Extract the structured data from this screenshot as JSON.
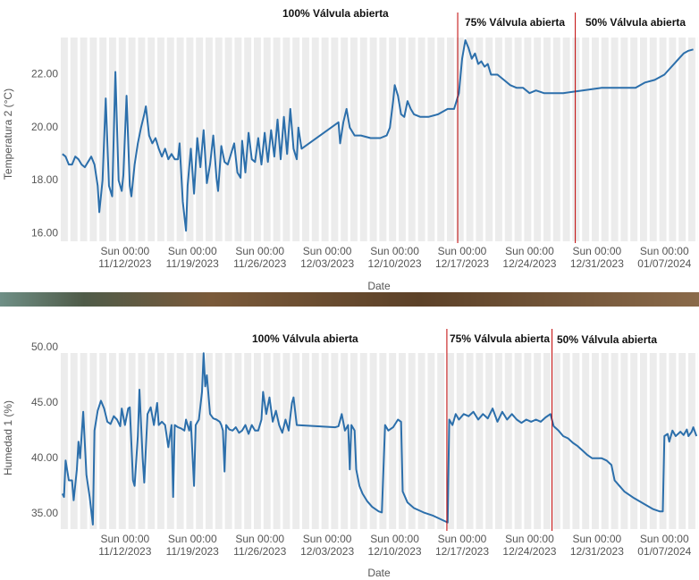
{
  "chart_data": [
    {
      "type": "line",
      "xlabel": "Date",
      "ylabel": "Temperatura 2 (°C)",
      "color": "#2c6fab",
      "xlim": [
        "2023-11-05 08:00",
        "2024-01-10 12:00"
      ],
      "ylim": [
        15.7,
        23.4
      ],
      "yticks": [
        {
          "value": 16,
          "label": "16.00"
        },
        {
          "value": 18,
          "label": "18.00"
        },
        {
          "value": 20,
          "label": "20.00"
        },
        {
          "value": 22,
          "label": "22.00"
        }
      ],
      "xticks": [
        {
          "value": "2023-11-12 00:00",
          "label": "Sun 00:00\n11/12/2023"
        },
        {
          "value": "2023-11-19 00:00",
          "label": "Sun 00:00\n11/19/2023"
        },
        {
          "value": "2023-11-26 00:00",
          "label": "Sun 00:00\n11/26/2023"
        },
        {
          "value": "2023-12-03 00:00",
          "label": "Sun 00:00\n12/03/2023"
        },
        {
          "value": "2023-12-10 00:00",
          "label": "Sun 00:00\n12/10/2023"
        },
        {
          "value": "2023-12-17 00:00",
          "label": "Sun 00:00\n12/17/2023"
        },
        {
          "value": "2023-12-24 00:00",
          "label": "Sun 00:00\n12/24/2023"
        },
        {
          "value": "2023-12-31 00:00",
          "label": "Sun 00:00\n12/31/2023"
        },
        {
          "value": "2024-01-07 00:00",
          "label": "Sun 00:00\n01/07/2024"
        }
      ],
      "annotations": [
        "100% Válvula abierta",
        "75% Válvula abierta",
        "50% Válvula abierta"
      ],
      "vlines": [
        {
          "x": "2023-12-16 13:00",
          "color": "#c00000"
        },
        {
          "x": "2023-12-28 18:00",
          "color": "#c00000"
        }
      ],
      "x": [
        "2023-11-05 12:00",
        "2023-11-05 20:00",
        "2023-11-06 04:00",
        "2023-11-06 12:00",
        "2023-11-06 20:00",
        "2023-11-07 04:00",
        "2023-11-07 12:00",
        "2023-11-07 20:00",
        "2023-11-08 04:00",
        "2023-11-08 12:00",
        "2023-11-08 20:00",
        "2023-11-09 04:00",
        "2023-11-09 08:00",
        "2023-11-09 16:00",
        "2023-11-10 00:00",
        "2023-11-10 08:00",
        "2023-11-10 16:00",
        "2023-11-11 00:00",
        "2023-11-11 08:00",
        "2023-11-11 16:00",
        "2023-11-11 20:00",
        "2023-11-12 04:00",
        "2023-11-12 12:00",
        "2023-11-12 16:00",
        "2023-11-13 00:00",
        "2023-11-13 08:00",
        "2023-11-13 16:00",
        "2023-11-14 00:00",
        "2023-11-14 04:00",
        "2023-11-14 12:00",
        "2023-11-14 20:00",
        "2023-11-15 04:00",
        "2023-11-15 12:00",
        "2023-11-15 20:00",
        "2023-11-16 04:00",
        "2023-11-16 12:00",
        "2023-11-16 20:00",
        "2023-11-17 04:00",
        "2023-11-17 12:00",
        "2023-11-17 16:00",
        "2023-11-18 00:00",
        "2023-11-18 08:00",
        "2023-11-18 12:00",
        "2023-11-18 20:00",
        "2023-11-19 04:00",
        "2023-11-19 12:00",
        "2023-11-19 20:00",
        "2023-11-20 04:00",
        "2023-11-20 12:00",
        "2023-11-20 20:00",
        "2023-11-21 04:00",
        "2023-11-21 12:00",
        "2023-11-21 16:00",
        "2023-11-22 00:00",
        "2023-11-22 08:00",
        "2023-11-22 16:00",
        "2023-11-23 00:00",
        "2023-11-23 08:00",
        "2023-11-23 16:00",
        "2023-11-24 00:00",
        "2023-11-24 04:00",
        "2023-11-24 12:00",
        "2023-11-24 20:00",
        "2023-11-25 04:00",
        "2023-11-25 12:00",
        "2023-11-25 20:00",
        "2023-11-26 04:00",
        "2023-11-26 12:00",
        "2023-11-26 20:00",
        "2023-11-27 04:00",
        "2023-11-27 12:00",
        "2023-11-27 20:00",
        "2023-11-28 04:00",
        "2023-11-28 12:00",
        "2023-11-28 20:00",
        "2023-11-29 04:00",
        "2023-11-29 12:00",
        "2023-11-29 20:00",
        "2023-11-30 00:00",
        "2023-11-30 08:00",
        "2023-12-04 04:00",
        "2023-12-04 08:00",
        "2023-12-04 16:00",
        "2023-12-05 00:00",
        "2023-12-05 08:00",
        "2023-12-05 20:00",
        "2023-12-06 12:00",
        "2023-12-07 12:00",
        "2023-12-08 12:00",
        "2023-12-09 04:00",
        "2023-12-09 12:00",
        "2023-12-09 20:00",
        "2023-12-10 00:00",
        "2023-12-10 08:00",
        "2023-12-10 16:00",
        "2023-12-11 00:00",
        "2023-12-11 08:00",
        "2023-12-11 16:00",
        "2023-12-12 00:00",
        "2023-12-12 16:00",
        "2023-12-13 12:00",
        "2023-12-14 12:00",
        "2023-12-15 12:00",
        "2023-12-16 04:00",
        "2023-12-16 16:00",
        "2023-12-17 00:00",
        "2023-12-17 08:00",
        "2023-12-17 16:00",
        "2023-12-18 00:00",
        "2023-12-18 08:00",
        "2023-12-18 16:00",
        "2023-12-19 00:00",
        "2023-12-19 08:00",
        "2023-12-19 16:00",
        "2023-12-20 00:00",
        "2023-12-20 16:00",
        "2023-12-21 08:00",
        "2023-12-22 00:00",
        "2023-12-22 16:00",
        "2023-12-23 08:00",
        "2023-12-24 00:00",
        "2023-12-24 16:00",
        "2023-12-25 12:00",
        "2023-12-27 12:00",
        "2023-12-29 12:00",
        "2023-12-31 12:00",
        "2024-01-02 12:00",
        "2024-01-04 00:00",
        "2024-01-05 00:00",
        "2024-01-06 00:00",
        "2024-01-07 00:00",
        "2024-01-07 12:00",
        "2024-01-08 00:00",
        "2024-01-08 12:00",
        "2024-01-09 00:00",
        "2024-01-09 12:00",
        "2024-01-10 00:00"
      ],
      "values": [
        19.0,
        18.9,
        18.6,
        18.6,
        18.9,
        18.8,
        18.6,
        18.5,
        18.7,
        18.9,
        18.6,
        17.8,
        16.8,
        18.0,
        21.1,
        17.8,
        17.4,
        22.1,
        18.0,
        17.6,
        18.2,
        21.2,
        17.8,
        17.4,
        18.6,
        19.4,
        20.0,
        20.5,
        20.8,
        19.7,
        19.4,
        19.6,
        19.2,
        18.9,
        19.2,
        18.8,
        19.0,
        18.8,
        18.8,
        19.4,
        17.2,
        16.1,
        17.8,
        19.2,
        17.5,
        19.6,
        18.5,
        19.9,
        17.9,
        18.6,
        19.7,
        18.1,
        17.6,
        19.3,
        18.7,
        18.6,
        19.0,
        19.4,
        18.3,
        18.1,
        19.5,
        18.3,
        19.8,
        18.8,
        18.7,
        19.6,
        18.6,
        19.8,
        18.7,
        19.9,
        18.9,
        20.3,
        18.8,
        20.4,
        19.0,
        20.7,
        19.2,
        18.8,
        20.0,
        19.2,
        20.2,
        19.4,
        20.2,
        20.7,
        20.0,
        19.7,
        19.7,
        19.6,
        19.6,
        19.7,
        20.0,
        21.0,
        21.6,
        21.2,
        20.5,
        20.4,
        21.0,
        20.7,
        20.5,
        20.4,
        20.4,
        20.5,
        20.7,
        20.7,
        21.3,
        22.6,
        23.3,
        23.0,
        22.6,
        22.8,
        22.4,
        22.5,
        22.3,
        22.4,
        22.0,
        22.0,
        21.8,
        21.6,
        21.5,
        21.5,
        21.3,
        21.4,
        21.3,
        21.3,
        21.4,
        21.5,
        21.5,
        21.5,
        21.7,
        21.8,
        22.0,
        22.2,
        22.4,
        22.6,
        22.8,
        22.9,
        22.95
      ]
    },
    {
      "type": "line",
      "xlabel": "Date",
      "ylabel": "Humedad 1 (%)",
      "color": "#2c6fab",
      "xlim": [
        "2023-11-05 08:00",
        "2024-01-10 12:00"
      ],
      "ylim": [
        33.6,
        50.0
      ],
      "yticks": [
        {
          "value": 35,
          "label": "35.00"
        },
        {
          "value": 40,
          "label": "40.00"
        },
        {
          "value": 45,
          "label": "45.00"
        },
        {
          "value": 50,
          "label": "50.00"
        }
      ],
      "xticks": [
        {
          "value": "2023-11-12 00:00",
          "label": "Sun 00:00\n11/12/2023"
        },
        {
          "value": "2023-11-19 00:00",
          "label": "Sun 00:00\n11/19/2023"
        },
        {
          "value": "2023-11-26 00:00",
          "label": "Sun 00:00\n11/26/2023"
        },
        {
          "value": "2023-12-03 00:00",
          "label": "Sun 00:00\n12/03/2023"
        },
        {
          "value": "2023-12-10 00:00",
          "label": "Sun 00:00\n12/10/2023"
        },
        {
          "value": "2023-12-17 00:00",
          "label": "Sun 00:00\n12/17/2023"
        },
        {
          "value": "2023-12-24 00:00",
          "label": "Sun 00:00\n12/24/2023"
        },
        {
          "value": "2023-12-31 00:00",
          "label": "Sun 00:00\n12/31/2023"
        },
        {
          "value": "2024-01-07 00:00",
          "label": "Sun 00:00\n01/07/2024"
        }
      ],
      "annotations": [
        "100% Válvula abierta",
        "75% Válvula abierta",
        "50% Válvula abierta"
      ],
      "vlines": [
        {
          "x": "2023-12-15 10:00",
          "color": "#c00000"
        },
        {
          "x": "2023-12-26 08:00",
          "color": "#c00000"
        }
      ],
      "x": [
        "2023-11-05 12:00",
        "2023-11-05 16:00",
        "2023-11-05 20:00",
        "2023-11-06 04:00",
        "2023-11-06 12:00",
        "2023-11-06 16:00",
        "2023-11-07 00:00",
        "2023-11-07 04:00",
        "2023-11-07 08:00",
        "2023-11-07 16:00",
        "2023-11-08 00:00",
        "2023-11-08 08:00",
        "2023-11-08 16:00",
        "2023-11-08 20:00",
        "2023-11-09 04:00",
        "2023-11-09 12:00",
        "2023-11-09 20:00",
        "2023-11-10 04:00",
        "2023-11-10 12:00",
        "2023-11-10 20:00",
        "2023-11-11 04:00",
        "2023-11-11 12:00",
        "2023-11-11 16:00",
        "2023-11-12 00:00",
        "2023-11-12 08:00",
        "2023-11-12 12:00",
        "2023-11-12 20:00",
        "2023-11-13 00:00",
        "2023-11-13 08:00",
        "2023-11-13 12:00",
        "2023-11-13 20:00",
        "2023-11-14 00:00",
        "2023-11-14 08:00",
        "2023-11-14 16:00",
        "2023-11-15 00:00",
        "2023-11-15 08:00",
        "2023-11-15 12:00",
        "2023-11-15 20:00",
        "2023-11-16 04:00",
        "2023-11-16 12:00",
        "2023-11-16 20:00",
        "2023-11-17 00:00",
        "2023-11-17 04:00",
        "2023-11-17 12:00",
        "2023-11-17 20:00",
        "2023-11-18 04:00",
        "2023-11-18 08:00",
        "2023-11-18 16:00",
        "2023-11-18 20:00",
        "2023-11-19 04:00",
        "2023-11-19 08:00",
        "2023-11-19 16:00",
        "2023-11-20 00:00",
        "2023-11-20 04:00",
        "2023-11-20 08:00",
        "2023-11-20 12:00",
        "2023-11-20 20:00",
        "2023-11-21 04:00",
        "2023-11-21 12:00",
        "2023-11-21 20:00",
        "2023-11-22 00:00",
        "2023-11-22 04:00",
        "2023-11-22 08:00",
        "2023-11-22 12:00",
        "2023-11-22 20:00",
        "2023-11-23 04:00",
        "2023-11-23 12:00",
        "2023-11-23 20:00",
        "2023-11-24 04:00",
        "2023-11-24 12:00",
        "2023-11-24 20:00",
        "2023-11-25 04:00",
        "2023-11-25 12:00",
        "2023-11-25 20:00",
        "2023-11-26 04:00",
        "2023-11-26 08:00",
        "2023-11-26 16:00",
        "2023-11-27 00:00",
        "2023-11-27 08:00",
        "2023-11-27 16:00",
        "2023-11-28 00:00",
        "2023-11-28 08:00",
        "2023-11-28 16:00",
        "2023-11-29 00:00",
        "2023-11-29 08:00",
        "2023-11-29 12:00",
        "2023-11-29 20:00",
        "2023-12-03 20:00",
        "2023-12-04 04:00",
        "2023-12-04 12:00",
        "2023-12-04 20:00",
        "2023-12-05 04:00",
        "2023-12-05 08:00",
        "2023-12-05 12:00",
        "2023-12-05 20:00",
        "2023-12-06 00:00",
        "2023-12-06 08:00",
        "2023-12-06 16:00",
        "2023-12-07 04:00",
        "2023-12-07 16:00",
        "2023-12-08 08:00",
        "2023-12-08 16:00",
        "2023-12-09 00:00",
        "2023-12-09 08:00",
        "2023-12-09 20:00",
        "2023-12-10 08:00",
        "2023-12-10 16:00",
        "2023-12-10 20:00",
        "2023-12-11 08:00",
        "2023-12-12 00:00",
        "2023-12-13 00:00",
        "2023-12-14 00:00",
        "2023-12-15 00:00",
        "2023-12-15 12:00",
        "2023-12-15 16:00",
        "2023-12-16 00:00",
        "2023-12-16 08:00",
        "2023-12-16 16:00",
        "2023-12-17 04:00",
        "2023-12-17 16:00",
        "2023-12-18 04:00",
        "2023-12-18 16:00",
        "2023-12-19 04:00",
        "2023-12-19 16:00",
        "2023-12-20 04:00",
        "2023-12-20 16:00",
        "2023-12-21 04:00",
        "2023-12-21 16:00",
        "2023-12-22 04:00",
        "2023-12-22 16:00",
        "2023-12-23 04:00",
        "2023-12-23 16:00",
        "2023-12-24 04:00",
        "2023-12-24 16:00",
        "2023-12-25 04:00",
        "2023-12-25 16:00",
        "2023-12-26 04:00",
        "2023-12-26 12:00",
        "2023-12-27 00:00",
        "2023-12-27 12:00",
        "2023-12-28 00:00",
        "2023-12-28 12:00",
        "2023-12-29 00:00",
        "2023-12-29 12:00",
        "2023-12-30 00:00",
        "2023-12-30 12:00",
        "2023-12-31 12:00",
        "2024-01-01 00:00",
        "2024-01-01 12:00",
        "2024-01-01 20:00",
        "2024-01-02 08:00",
        "2024-01-02 20:00",
        "2024-01-03 20:00",
        "2024-01-04 20:00",
        "2024-01-05 20:00",
        "2024-01-06 12:00",
        "2024-01-06 20:00",
        "2024-01-07 00:00",
        "2024-01-07 08:00",
        "2024-01-07 12:00",
        "2024-01-07 20:00",
        "2024-01-08 04:00",
        "2024-01-08 16:00",
        "2024-01-09 00:00",
        "2024-01-09 08:00",
        "2024-01-09 12:00",
        "2024-01-09 20:00",
        "2024-01-10 00:00",
        "2024-01-10 08:00"
      ],
      "values": [
        36.8,
        36.5,
        39.8,
        38.0,
        38.0,
        36.2,
        39.0,
        41.5,
        40.0,
        44.2,
        38.5,
        36.5,
        34.0,
        42.5,
        44.3,
        45.2,
        44.5,
        43.3,
        43.1,
        43.8,
        43.5,
        42.9,
        44.5,
        43.0,
        44.5,
        44.6,
        38.0,
        37.5,
        42.0,
        46.2,
        40.0,
        37.8,
        44.0,
        44.6,
        43.0,
        45.0,
        43.0,
        43.3,
        43.0,
        41.0,
        43.0,
        36.5,
        43.0,
        42.8,
        42.7,
        42.5,
        43.5,
        42.5,
        43.3,
        37.5,
        43.0,
        43.5,
        46.0,
        49.5,
        46.5,
        47.5,
        44.0,
        43.6,
        43.5,
        43.3,
        43.0,
        42.5,
        38.8,
        43.0,
        42.6,
        42.5,
        42.8,
        42.3,
        42.5,
        43.0,
        42.2,
        43.0,
        42.5,
        42.5,
        43.5,
        46.0,
        44.0,
        45.5,
        43.3,
        44.3,
        43.0,
        42.3,
        43.5,
        42.5,
        45.0,
        45.5,
        43.0,
        42.8,
        42.9,
        44.0,
        42.5,
        43.0,
        39.0,
        43.0,
        42.5,
        39.0,
        37.5,
        36.8,
        36.1,
        35.6,
        35.2,
        35.1,
        43.0,
        42.5,
        42.8,
        43.5,
        43.3,
        37.0,
        36.0,
        35.5,
        35.1,
        34.8,
        34.4,
        34.2,
        43.5,
        43.0,
        44.0,
        43.5,
        44.0,
        43.8,
        44.2,
        43.5,
        44.0,
        43.6,
        44.5,
        43.3,
        44.2,
        43.5,
        44.0,
        43.5,
        43.2,
        43.5,
        43.3,
        43.5,
        43.3,
        43.7,
        44.0,
        42.9,
        42.5,
        42.0,
        41.8,
        41.4,
        41.1,
        40.7,
        40.3,
        40.0,
        40.0,
        39.8,
        39.4,
        38.0,
        37.5,
        37.0,
        36.4,
        35.9,
        35.4,
        35.2,
        35.2,
        42.0,
        42.2,
        41.5,
        42.5,
        42.0,
        42.4,
        42.1,
        42.6,
        42.0,
        42.4,
        42.8,
        42.0
      ]
    }
  ]
}
